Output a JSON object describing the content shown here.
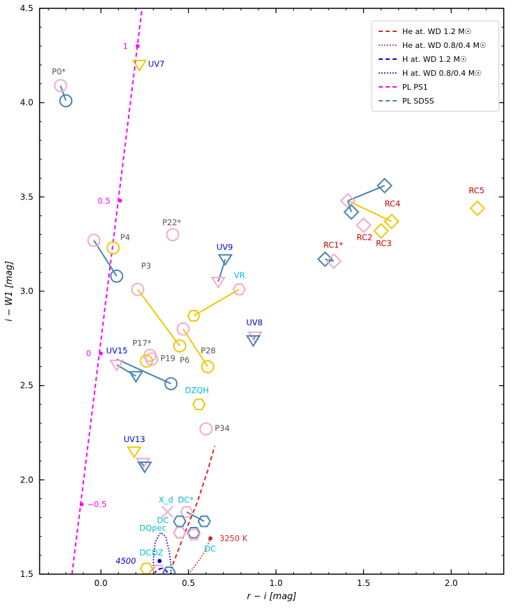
{
  "chart_data": {
    "type": "scatter",
    "xlabel": "r − i  [mag]",
    "ylabel": "i − W1  [mag]",
    "xlim": [
      -0.35,
      2.3
    ],
    "ylim": [
      1.5,
      4.5
    ],
    "grid": false,
    "legend_position": "top-right",
    "x_ticks": [
      {
        "value": 0.0,
        "label": "0.0"
      },
      {
        "value": 0.5,
        "label": "0.5"
      },
      {
        "value": 1.0,
        "label": "1.0"
      },
      {
        "value": 1.5,
        "label": "1.5"
      },
      {
        "value": 2.0,
        "label": "2.0"
      }
    ],
    "y_ticks": [
      {
        "value": 1.5,
        "label": "1.5"
      },
      {
        "value": 2.0,
        "label": "2.0"
      },
      {
        "value": 2.5,
        "label": "2.5"
      },
      {
        "value": 3.0,
        "label": "3.0"
      },
      {
        "value": 3.5,
        "label": "3.5"
      },
      {
        "value": 4.0,
        "label": "4.0"
      },
      {
        "value": 4.5,
        "label": "4.5"
      }
    ],
    "legend": [
      {
        "label": "He at. WD 1.2 M☉",
        "color": "#d62728",
        "style": "dashed"
      },
      {
        "label": "He at. WD 0.8/0.4 M☉",
        "color": "#d62728",
        "style": "dotted"
      },
      {
        "label": "H at. WD 1.2 M☉",
        "color": "#0000cd",
        "style": "dashed"
      },
      {
        "label": "H at. WD 0.8/0.4 M☉",
        "color": "#0000cd",
        "style": "dotted"
      },
      {
        "label": "PL PS1",
        "color": "#ff00ff",
        "style": "dashed"
      },
      {
        "label": "PL SDSS",
        "color": "#4682b4",
        "style": "dashed"
      }
    ],
    "colors": {
      "ps1_pl": "#ff00ff",
      "sdss": "#4682b4",
      "ps1": "#f5a9c8",
      "yellow": "#eec900",
      "he_track": "#d62728",
      "h_track": "#0000cd",
      "label_gray": "#555555",
      "label_blue": "#0000cd",
      "label_red": "#cc0000",
      "label_cyan": "#00bcd4",
      "label_magenta": "#ff00ff"
    },
    "pl_ps1_line": {
      "x": [
        -0.165,
        0.235
      ],
      "y": [
        1.5,
        4.5
      ]
    },
    "pl_ps1_points": [
      {
        "x": 0.21,
        "y": 4.3,
        "label": "1"
      },
      {
        "x": 0.11,
        "y": 3.48,
        "label": "0.5"
      },
      {
        "x": 0.0,
        "y": 2.67,
        "label": "0"
      },
      {
        "x": -0.11,
        "y": 1.87,
        "label": "−0.5"
      }
    ],
    "he_wd_12": {
      "x": [
        0.41,
        0.48,
        0.55,
        0.61,
        0.65
      ],
      "y": [
        1.55,
        1.72,
        1.88,
        2.05,
        2.18
      ]
    },
    "he_wd_08": {
      "x": [
        0.5,
        0.55,
        0.6,
        0.625
      ],
      "y": [
        1.5,
        1.56,
        1.63,
        1.69
      ]
    },
    "he_wd_point": {
      "x": 0.625,
      "y": 1.69,
      "label": "3250 K"
    },
    "h_wd_12": {
      "x": [
        0.3,
        0.32,
        0.34,
        0.36,
        0.38,
        0.4
      ],
      "y": [
        1.5,
        1.52,
        1.53,
        1.53,
        1.51,
        1.5
      ]
    },
    "h_wd_08": {
      "x": [
        0.3,
        0.3,
        0.31,
        0.34,
        0.37,
        0.39,
        0.4,
        0.4
      ],
      "y": [
        1.5,
        1.58,
        1.67,
        1.72,
        1.7,
        1.62,
        1.55,
        1.5
      ]
    },
    "h_wd_point": {
      "x": 0.335,
      "y": 1.57,
      "label": "4500"
    },
    "connections": [
      {
        "x1": -0.23,
        "y1": 4.09,
        "x2": -0.2,
        "y2": 4.01,
        "color": "#4682b4"
      },
      {
        "x1": -0.04,
        "y1": 3.27,
        "x2": 0.09,
        "y2": 3.08,
        "color": "#4682b4"
      },
      {
        "x1": 0.09,
        "y1": 2.64,
        "x2": 0.4,
        "y2": 2.51,
        "color": "#4682b4"
      },
      {
        "x1": 0.09,
        "y1": 2.61,
        "x2": 0.2,
        "y2": 2.55,
        "color": "#4682b4"
      },
      {
        "x1": 0.23,
        "y1": 2.09,
        "x2": 0.25,
        "y2": 2.07,
        "color": "#4682b4"
      },
      {
        "x1": 0.67,
        "y1": 3.05,
        "x2": 0.71,
        "y2": 3.17,
        "color": "#4682b4"
      },
      {
        "x1": 0.88,
        "y1": 2.76,
        "x2": 0.87,
        "y2": 2.74,
        "color": "#4682b4"
      },
      {
        "x1": 0.21,
        "y1": 3.01,
        "x2": 0.45,
        "y2": 2.71,
        "color": "#eec900"
      },
      {
        "x1": 0.79,
        "y1": 3.01,
        "x2": 0.53,
        "y2": 2.87,
        "color": "#eec900"
      },
      {
        "x1": 0.47,
        "y1": 2.8,
        "x2": 0.61,
        "y2": 2.6,
        "color": "#eec900"
      },
      {
        "x1": 1.41,
        "y1": 3.48,
        "x2": 1.66,
        "y2": 3.37,
        "color": "#eec900"
      },
      {
        "x1": 1.41,
        "y1": 3.48,
        "x2": 1.62,
        "y2": 3.56,
        "color": "#4682b4"
      },
      {
        "x1": 1.41,
        "y1": 3.48,
        "x2": 1.43,
        "y2": 3.42,
        "color": "#4682b4"
      },
      {
        "x1": 1.33,
        "y1": 3.16,
        "x2": 1.28,
        "y2": 3.17,
        "color": "#4682b4"
      },
      {
        "x1": 0.49,
        "y1": 1.83,
        "x2": 0.59,
        "y2": 1.78,
        "color": "#4682b4"
      }
    ],
    "markers": [
      {
        "shape": "circle",
        "x": -0.23,
        "y": 4.09,
        "color": "#f5a9c8"
      },
      {
        "shape": "circle",
        "x": -0.2,
        "y": 4.01,
        "color": "#4682b4"
      },
      {
        "shape": "triangle",
        "x": 0.22,
        "y": 4.2,
        "color": "#eec900"
      },
      {
        "shape": "circle",
        "x": -0.04,
        "y": 3.27,
        "color": "#f5a9c8"
      },
      {
        "shape": "circle",
        "x": 0.07,
        "y": 3.23,
        "color": "#eec900"
      },
      {
        "shape": "circle",
        "x": 0.09,
        "y": 3.08,
        "color": "#4682b4"
      },
      {
        "shape": "circle",
        "x": 0.41,
        "y": 3.3,
        "color": "#f5a9c8"
      },
      {
        "shape": "circle",
        "x": 0.21,
        "y": 3.01,
        "color": "#f5a9c8"
      },
      {
        "shape": "triangle",
        "x": 0.71,
        "y": 3.17,
        "color": "#4682b4"
      },
      {
        "shape": "triangle",
        "x": 0.67,
        "y": 3.05,
        "color": "#f5a9c8"
      },
      {
        "shape": "hexagon",
        "x": 0.79,
        "y": 3.01,
        "color": "#f5a9c8"
      },
      {
        "shape": "hexagon",
        "x": 0.53,
        "y": 2.87,
        "color": "#eec900"
      },
      {
        "shape": "circle",
        "x": 0.47,
        "y": 2.8,
        "color": "#f5a9c8"
      },
      {
        "shape": "circle",
        "x": 0.45,
        "y": 2.71,
        "color": "#eec900"
      },
      {
        "shape": "circle",
        "x": 0.61,
        "y": 2.6,
        "color": "#eec900"
      },
      {
        "shape": "triangle",
        "x": 0.88,
        "y": 2.76,
        "color": "#f5a9c8"
      },
      {
        "shape": "triangle",
        "x": 0.87,
        "y": 2.74,
        "color": "#4682b4"
      },
      {
        "shape": "circle",
        "x": 0.28,
        "y": 2.66,
        "color": "#f5a9c8"
      },
      {
        "shape": "circle",
        "x": 0.29,
        "y": 2.64,
        "color": "#f5a9c8"
      },
      {
        "shape": "circle",
        "x": 0.26,
        "y": 2.63,
        "color": "#eec900"
      },
      {
        "shape": "triangle",
        "x": 0.09,
        "y": 2.61,
        "color": "#f5a9c8"
      },
      {
        "shape": "triangle",
        "x": 0.2,
        "y": 2.55,
        "color": "#4682b4"
      },
      {
        "shape": "circle",
        "x": 0.4,
        "y": 2.51,
        "color": "#4682b4"
      },
      {
        "shape": "hexagon",
        "x": 0.56,
        "y": 2.4,
        "color": "#eec900"
      },
      {
        "shape": "circle",
        "x": 0.6,
        "y": 2.27,
        "color": "#f5a9c8"
      },
      {
        "shape": "triangle",
        "x": 0.19,
        "y": 2.15,
        "color": "#eec900"
      },
      {
        "shape": "triangle",
        "x": 0.24,
        "y": 2.09,
        "color": "#f5a9c8"
      },
      {
        "shape": "triangle",
        "x": 0.25,
        "y": 2.07,
        "color": "#4682b4"
      },
      {
        "shape": "cross",
        "x": 0.38,
        "y": 1.83,
        "color": "#f5a9c8"
      },
      {
        "shape": "hexagon",
        "x": 0.49,
        "y": 1.83,
        "color": "#f5a9c8"
      },
      {
        "shape": "hexagon",
        "x": 0.59,
        "y": 1.78,
        "color": "#4682b4"
      },
      {
        "shape": "hexagon",
        "x": 0.45,
        "y": 1.78,
        "color": "#4682b4"
      },
      {
        "shape": "hexagon",
        "x": 0.45,
        "y": 1.72,
        "color": "#4682b4"
      },
      {
        "shape": "hexagon",
        "x": 0.45,
        "y": 1.72,
        "color": "#f5a9c8"
      },
      {
        "shape": "hexagon",
        "x": 0.53,
        "y": 1.72,
        "color": "#4682b4"
      },
      {
        "shape": "hexagon",
        "x": 0.53,
        "y": 1.71,
        "color": "#f5a9c8"
      },
      {
        "shape": "hexagon",
        "x": 0.26,
        "y": 1.53,
        "color": "#eec900"
      },
      {
        "shape": "hexagon",
        "x": 0.33,
        "y": 1.52,
        "color": "#f5a9c8"
      },
      {
        "shape": "hexagon",
        "x": 0.39,
        "y": 1.51,
        "color": "#4682b4"
      },
      {
        "shape": "diamond",
        "x": 1.62,
        "y": 3.56,
        "color": "#4682b4"
      },
      {
        "shape": "diamond",
        "x": 1.41,
        "y": 3.48,
        "color": "#f5a9c8"
      },
      {
        "shape": "diamond",
        "x": 1.43,
        "y": 3.42,
        "color": "#4682b4"
      },
      {
        "shape": "diamond",
        "x": 1.66,
        "y": 3.37,
        "color": "#eec900"
      },
      {
        "shape": "diamond",
        "x": 1.5,
        "y": 3.35,
        "color": "#f5a9c8"
      },
      {
        "shape": "diamond",
        "x": 1.6,
        "y": 3.32,
        "color": "#eec900"
      },
      {
        "shape": "diamond",
        "x": 2.15,
        "y": 3.44,
        "color": "#eec900"
      },
      {
        "shape": "diamond",
        "x": 1.28,
        "y": 3.17,
        "color": "#4682b4"
      },
      {
        "shape": "diamond",
        "x": 1.33,
        "y": 3.16,
        "color": "#f5a9c8"
      }
    ],
    "annotations": [
      {
        "text": "P0*",
        "x": -0.28,
        "y": 4.15,
        "color": "#555555"
      },
      {
        "text": "UV7",
        "x": 0.27,
        "y": 4.19,
        "color": "#0000cd"
      },
      {
        "text": "P4",
        "x": 0.11,
        "y": 3.27,
        "color": "#555555"
      },
      {
        "text": "P3",
        "x": 0.23,
        "y": 3.12,
        "color": "#555555"
      },
      {
        "text": "P22*",
        "x": 0.35,
        "y": 3.35,
        "color": "#555555"
      },
      {
        "text": "UV9",
        "x": 0.66,
        "y": 3.22,
        "color": "#0000cd"
      },
      {
        "text": "VR",
        "x": 0.76,
        "y": 3.07,
        "color": "#00bcd4"
      },
      {
        "text": "UV8",
        "x": 0.83,
        "y": 2.82,
        "color": "#0000cd"
      },
      {
        "text": "P17*",
        "x": 0.18,
        "y": 2.71,
        "color": "#555555"
      },
      {
        "text": "UV15",
        "x": 0.03,
        "y": 2.67,
        "color": "#0000cd"
      },
      {
        "text": "P19",
        "x": 0.34,
        "y": 2.63,
        "color": "#555555"
      },
      {
        "text": "P6",
        "x": 0.45,
        "y": 2.62,
        "color": "#555555"
      },
      {
        "text": "P28",
        "x": 0.57,
        "y": 2.67,
        "color": "#555555"
      },
      {
        "text": "DZQH",
        "x": 0.48,
        "y": 2.46,
        "color": "#00bcd4"
      },
      {
        "text": "P34",
        "x": 0.65,
        "y": 2.26,
        "color": "#555555"
      },
      {
        "text": "UV13",
        "x": 0.13,
        "y": 2.2,
        "color": "#0000cd"
      },
      {
        "text": "X_d",
        "x": 0.33,
        "y": 1.88,
        "color": "#00bcd4"
      },
      {
        "text": "DC*",
        "x": 0.44,
        "y": 1.88,
        "color": "#00bcd4"
      },
      {
        "text": "DC",
        "x": 0.32,
        "y": 1.77,
        "color": "#00bcd4"
      },
      {
        "text": "DQpec",
        "x": 0.22,
        "y": 1.73,
        "color": "#00bcd4"
      },
      {
        "text": "DC",
        "x": 0.59,
        "y": 1.62,
        "color": "#00bcd4"
      },
      {
        "text": "DC",
        "x": 0.22,
        "y": 1.6,
        "color": "#00bcd4"
      },
      {
        "text": "DZ",
        "x": 0.29,
        "y": 1.6,
        "color": "#00bcd4"
      },
      {
        "text": "RC1*",
        "x": 1.27,
        "y": 3.23,
        "color": "#cc0000"
      },
      {
        "text": "RC2",
        "x": 1.46,
        "y": 3.27,
        "color": "#cc0000"
      },
      {
        "text": "RC3",
        "x": 1.57,
        "y": 3.24,
        "color": "#cc0000"
      },
      {
        "text": "RC4",
        "x": 1.62,
        "y": 3.45,
        "color": "#cc0000"
      },
      {
        "text": "RC5",
        "x": 2.1,
        "y": 3.52,
        "color": "#cc0000"
      }
    ]
  }
}
